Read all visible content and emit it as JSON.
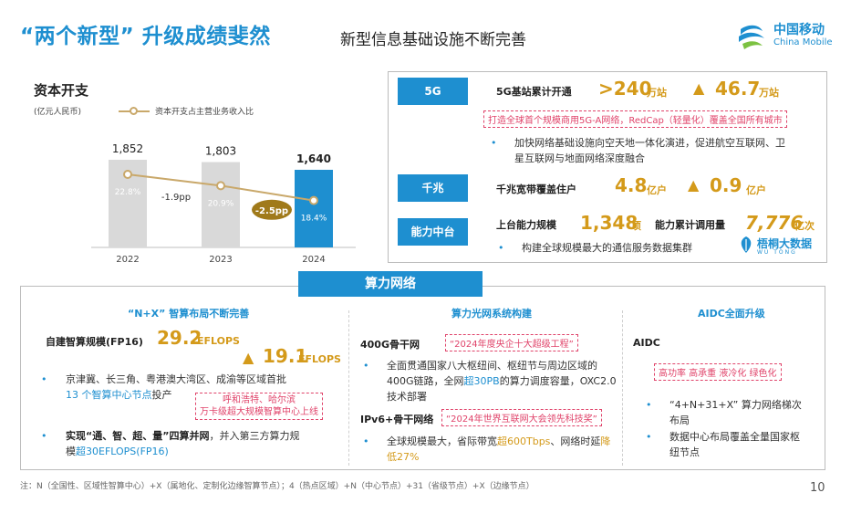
{
  "header": {
    "title": "“两个新型” 升级成绩斐然",
    "subtitle": "新型信息基础设施不断完善",
    "logo_cn": "中国移动",
    "logo_en": "China Mobile"
  },
  "chart_data": {
    "type": "bar",
    "title": "资本开支",
    "unit": "(亿元人民币)",
    "categories": [
      "2022",
      "2023",
      "2024"
    ],
    "series": [
      {
        "name": "资本开支",
        "values": [
          1852,
          1803,
          1640
        ]
      },
      {
        "name": "资本开支占主营业务收入比",
        "values": [
          22.8,
          20.9,
          18.4
        ],
        "labels": [
          "22.8%",
          "20.9%",
          "18.4%"
        ]
      }
    ],
    "value_labels": [
      "1,852",
      "1,803",
      "1,640"
    ],
    "changes": [
      "-1.9pp",
      "-2.5pp"
    ],
    "colors": {
      "bar": "#d9d9d9",
      "bar_highlight": "#1e8fd0",
      "line": "#c9a86a",
      "badge": "#a07a1a"
    }
  },
  "top_right": {
    "r5g": {
      "tag": "5G",
      "label": "5G基站累计开通",
      "value1": ">240",
      "unit1": "万站",
      "arrow": "▲",
      "value2": "46.7",
      "unit2": "万站",
      "highlight": "打造全球首个规模商用5G-A网络，RedCap（轻量化）覆盖全国所有城市",
      "bullet": "加快网络基础设施向空天地一体化演进，促进航空互联网、卫星互联网与地面网络深度融合"
    },
    "gigabit": {
      "tag": "千兆",
      "label": "千兆宽带覆盖住户",
      "value1": "4.8",
      "unit1": "亿户",
      "arrow": "▲",
      "value2": "0.9",
      "unit2": "亿户"
    },
    "platform": {
      "tag": "能力中台",
      "label1": "上台能力规模",
      "value1": "1,348",
      "unit1": "项",
      "label2": "能力累计调用量",
      "value2": "7,776",
      "unit2": "亿次",
      "bullet": "构建全球规模最大的通信服务数据集群",
      "brand_cn": "梧桐大数据",
      "brand_en": "WU TONG"
    }
  },
  "bottom": {
    "banner": "算力网络",
    "col1": {
      "head": "“N+X” 智算布局不断完善",
      "label": "自建智算规模(FP16)",
      "value": "29.2",
      "unit": "EFLOPS",
      "arrow": "▲",
      "value2": "19.1",
      "unit2": "EFLOPS",
      "bullet1_a": "京津冀、长三角、粤港澳大湾区、成渝等区域首批",
      "bullet1_b": "13 个智算中心节点",
      "bullet1_c": "投产",
      "callout_1": "呼和浩特、哈尔滨",
      "callout_2": "万卡级超大规模智算中心上线",
      "bullet2_a": "实现“通、智、超、量”四算并网",
      "bullet2_b": "，并入第三方算力规",
      "bullet2_c": "模",
      "bullet2_d": "超30EFLOPS(FP16)"
    },
    "col2": {
      "head": "算力光网系统构建",
      "label1": "400G骨干网",
      "tag1": "“2024年度央企十大超级工程”",
      "bullet1_a": "全面贯通国家八大枢纽间、枢纽节与周边区域的400G链路，全网",
      "bullet1_b": "超30PB",
      "bullet1_c": "的算力调度容量，OXC2.0技术部署",
      "label2": "IPv6+骨干网络",
      "tag2": "“2024年世界互联网大会领先科技奖”",
      "bullet2_a": "全球规模最大，省际带宽",
      "bullet2_b": "超600Tbps",
      "bullet2_c": "、网络时延",
      "bullet2_d": "降低27%"
    },
    "col3": {
      "head": "AIDC全面升级",
      "label": "AIDC",
      "tags": "高功率  高承重  液冷化  绿色化",
      "bullet1": "“4+N+31+X” 算力网络梯次布局",
      "bullet2": "数据中心布局覆盖全量国家枢纽节点"
    }
  },
  "footer": {
    "note": "注：N（全国性、区域性智算中心）+X（属地化、定制化边缘智算节点）；4（热点区域）+N（中心节点）+31（省级节点）+X（边缘节点）",
    "page": "10"
  }
}
